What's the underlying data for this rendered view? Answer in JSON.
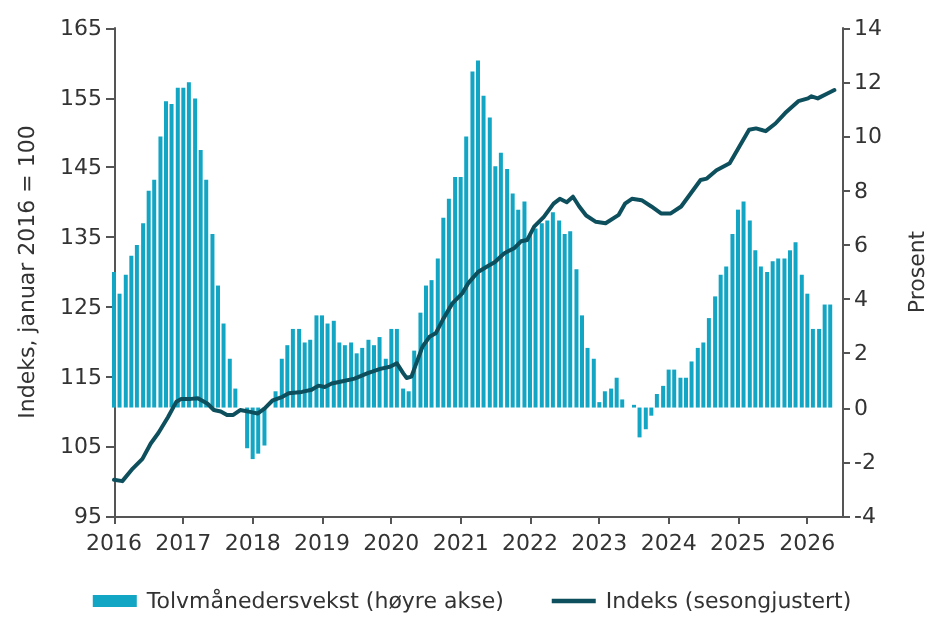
{
  "chart_data": {
    "type": "bar",
    "ylabel": "Indeks, januar 2016 = 100",
    "y2label": "Prosent",
    "legend": "bottom",
    "marker": "none",
    "xlim": [
      2016,
      2026.5
    ],
    "xticks": [
      2016,
      2017,
      2018,
      2019,
      2020,
      2021,
      2022,
      2023,
      2024,
      2025,
      2026
    ],
    "ylim": [
      95,
      165
    ],
    "yticks": [
      95,
      105,
      115,
      125,
      135,
      145,
      155,
      165
    ],
    "y2lim": [
      -4,
      14
    ],
    "y2ticks": [
      -4,
      -2,
      0,
      2,
      4,
      6,
      8,
      10,
      12,
      14
    ],
    "series": [
      {
        "name": "Tolvmånedersvekst (høyre akse)",
        "axis": "y2",
        "color": "#12a6c4",
        "x": [
          2016.0,
          2016.08,
          2016.17,
          2016.25,
          2016.33,
          2016.42,
          2016.5,
          2016.58,
          2016.67,
          2016.75,
          2016.83,
          2016.92,
          2017.0,
          2017.08,
          2017.17,
          2017.25,
          2017.33,
          2017.42,
          2017.5,
          2017.58,
          2017.67,
          2017.75,
          2017.83,
          2017.92,
          2018.0,
          2018.08,
          2018.17,
          2018.25,
          2018.33,
          2018.42,
          2018.5,
          2018.58,
          2018.67,
          2018.75,
          2018.83,
          2018.92,
          2019.0,
          2019.08,
          2019.17,
          2019.25,
          2019.33,
          2019.42,
          2019.5,
          2019.58,
          2019.67,
          2019.75,
          2019.83,
          2019.92,
          2020.0,
          2020.08,
          2020.17,
          2020.25,
          2020.33,
          2020.42,
          2020.5,
          2020.58,
          2020.67,
          2020.75,
          2020.83,
          2020.92,
          2021.0,
          2021.08,
          2021.17,
          2021.25,
          2021.33,
          2021.42,
          2021.5,
          2021.58,
          2021.67,
          2021.75,
          2021.83,
          2021.92,
          2022.0,
          2022.08,
          2022.17,
          2022.25,
          2022.33,
          2022.42,
          2022.5,
          2022.58,
          2022.67,
          2022.75,
          2022.83,
          2022.92,
          2023.0,
          2023.08,
          2023.17,
          2023.25,
          2023.33,
          2023.42,
          2023.5,
          2023.58,
          2023.67,
          2023.75,
          2023.83,
          2023.92,
          2024.0,
          2024.08,
          2024.17,
          2024.25,
          2024.33,
          2024.42,
          2024.5,
          2024.58,
          2024.67,
          2024.75,
          2024.83,
          2024.92,
          2025.0,
          2025.08,
          2025.17,
          2025.25,
          2025.33,
          2025.42,
          2025.5,
          2025.58,
          2025.67,
          2025.75,
          2025.83,
          2025.92,
          2026.0,
          2026.08,
          2026.17,
          2026.25,
          2026.33
        ],
        "values": [
          5.0,
          4.2,
          4.9,
          5.6,
          6.0,
          6.8,
          8.0,
          8.4,
          10.0,
          11.3,
          11.2,
          11.8,
          11.8,
          12.0,
          11.4,
          9.5,
          8.4,
          6.4,
          4.5,
          3.1,
          1.8,
          0.7,
          null,
          -1.5,
          -1.9,
          -1.7,
          -1.4,
          null,
          0.6,
          1.8,
          2.3,
          2.9,
          2.9,
          2.4,
          2.5,
          3.4,
          3.4,
          3.1,
          3.2,
          2.4,
          2.3,
          2.4,
          2.0,
          2.2,
          2.5,
          2.3,
          2.6,
          1.8,
          2.9,
          2.9,
          0.7,
          0.6,
          2.1,
          3.5,
          4.5,
          4.7,
          5.5,
          7.0,
          7.7,
          8.5,
          8.5,
          10.0,
          12.4,
          12.8,
          11.5,
          10.7,
          8.9,
          9.4,
          8.8,
          7.9,
          7.3,
          7.6,
          6.4,
          6.6,
          6.8,
          6.9,
          7.2,
          6.9,
          6.4,
          6.5,
          5.1,
          3.4,
          2.2,
          1.8,
          0.2,
          0.6,
          0.7,
          1.1,
          0.3,
          0.0,
          0.1,
          -1.1,
          -0.8,
          -0.3,
          0.5,
          0.8,
          1.4,
          1.4,
          1.1,
          1.1,
          1.7,
          2.2,
          2.4,
          3.3,
          4.1,
          4.9,
          5.2,
          6.4,
          7.3,
          7.6,
          6.9,
          5.8,
          5.2,
          5.0,
          5.4,
          5.5,
          5.5,
          5.8,
          6.1,
          4.9,
          4.2,
          2.9,
          2.9,
          3.8,
          3.8
        ]
      },
      {
        "name": "Indeks (sesongjustert)",
        "type": "line",
        "color": "#0d4f5c",
        "x": [
          2016.0,
          2016.12,
          2016.27,
          2016.41,
          2016.53,
          2016.64,
          2016.78,
          2016.9,
          2016.97,
          2017.11,
          2017.21,
          2017.35,
          2017.44,
          2017.54,
          2017.63,
          2017.72,
          2017.82,
          2017.98,
          2018.07,
          2018.17,
          2018.29,
          2018.43,
          2018.52,
          2018.71,
          2018.85,
          2018.95,
          2019.04,
          2019.14,
          2019.28,
          2019.47,
          2019.66,
          2019.84,
          2019.98,
          2020.08,
          2020.17,
          2020.22,
          2020.29,
          2020.36,
          2020.45,
          2020.55,
          2020.64,
          2020.74,
          2020.88,
          2021.02,
          2021.11,
          2021.25,
          2021.4,
          2021.49,
          2021.63,
          2021.77,
          2021.87,
          2021.96,
          2022.06,
          2022.2,
          2022.34,
          2022.43,
          2022.53,
          2022.62,
          2022.71,
          2022.81,
          2022.95,
          2023.09,
          2023.28,
          2023.37,
          2023.47,
          2023.61,
          2023.75,
          2023.89,
          2024.03,
          2024.18,
          2024.32,
          2024.46,
          2024.55,
          2024.69,
          2024.88,
          2025.02,
          2025.16,
          2025.26,
          2025.4,
          2025.54,
          2025.68,
          2025.87,
          2026.01,
          2026.06,
          2026.15,
          2026.29,
          2026.39
        ],
        "values": [
          100.2,
          100.0,
          101.8,
          103.2,
          105.4,
          106.9,
          109.2,
          111.4,
          111.8,
          111.8,
          111.9,
          111.1,
          110.2,
          110.0,
          109.5,
          109.5,
          110.2,
          109.9,
          109.7,
          110.4,
          111.6,
          112.1,
          112.6,
          112.8,
          113.1,
          113.7,
          113.5,
          114.0,
          114.3,
          114.7,
          115.5,
          116.1,
          116.4,
          116.9,
          115.5,
          114.8,
          115.0,
          116.9,
          119.3,
          120.7,
          121.2,
          123.1,
          125.5,
          126.9,
          128.4,
          130.0,
          130.9,
          131.4,
          132.7,
          133.4,
          134.4,
          134.6,
          136.5,
          137.9,
          139.8,
          140.5,
          140.0,
          140.8,
          139.4,
          138.1,
          137.2,
          137.0,
          138.2,
          139.8,
          140.5,
          140.3,
          139.4,
          138.4,
          138.4,
          139.4,
          141.3,
          143.2,
          143.4,
          144.6,
          145.6,
          148.0,
          150.4,
          150.6,
          150.2,
          151.3,
          152.8,
          154.5,
          154.9,
          155.2,
          154.9,
          155.6,
          156.1
        ]
      }
    ]
  }
}
